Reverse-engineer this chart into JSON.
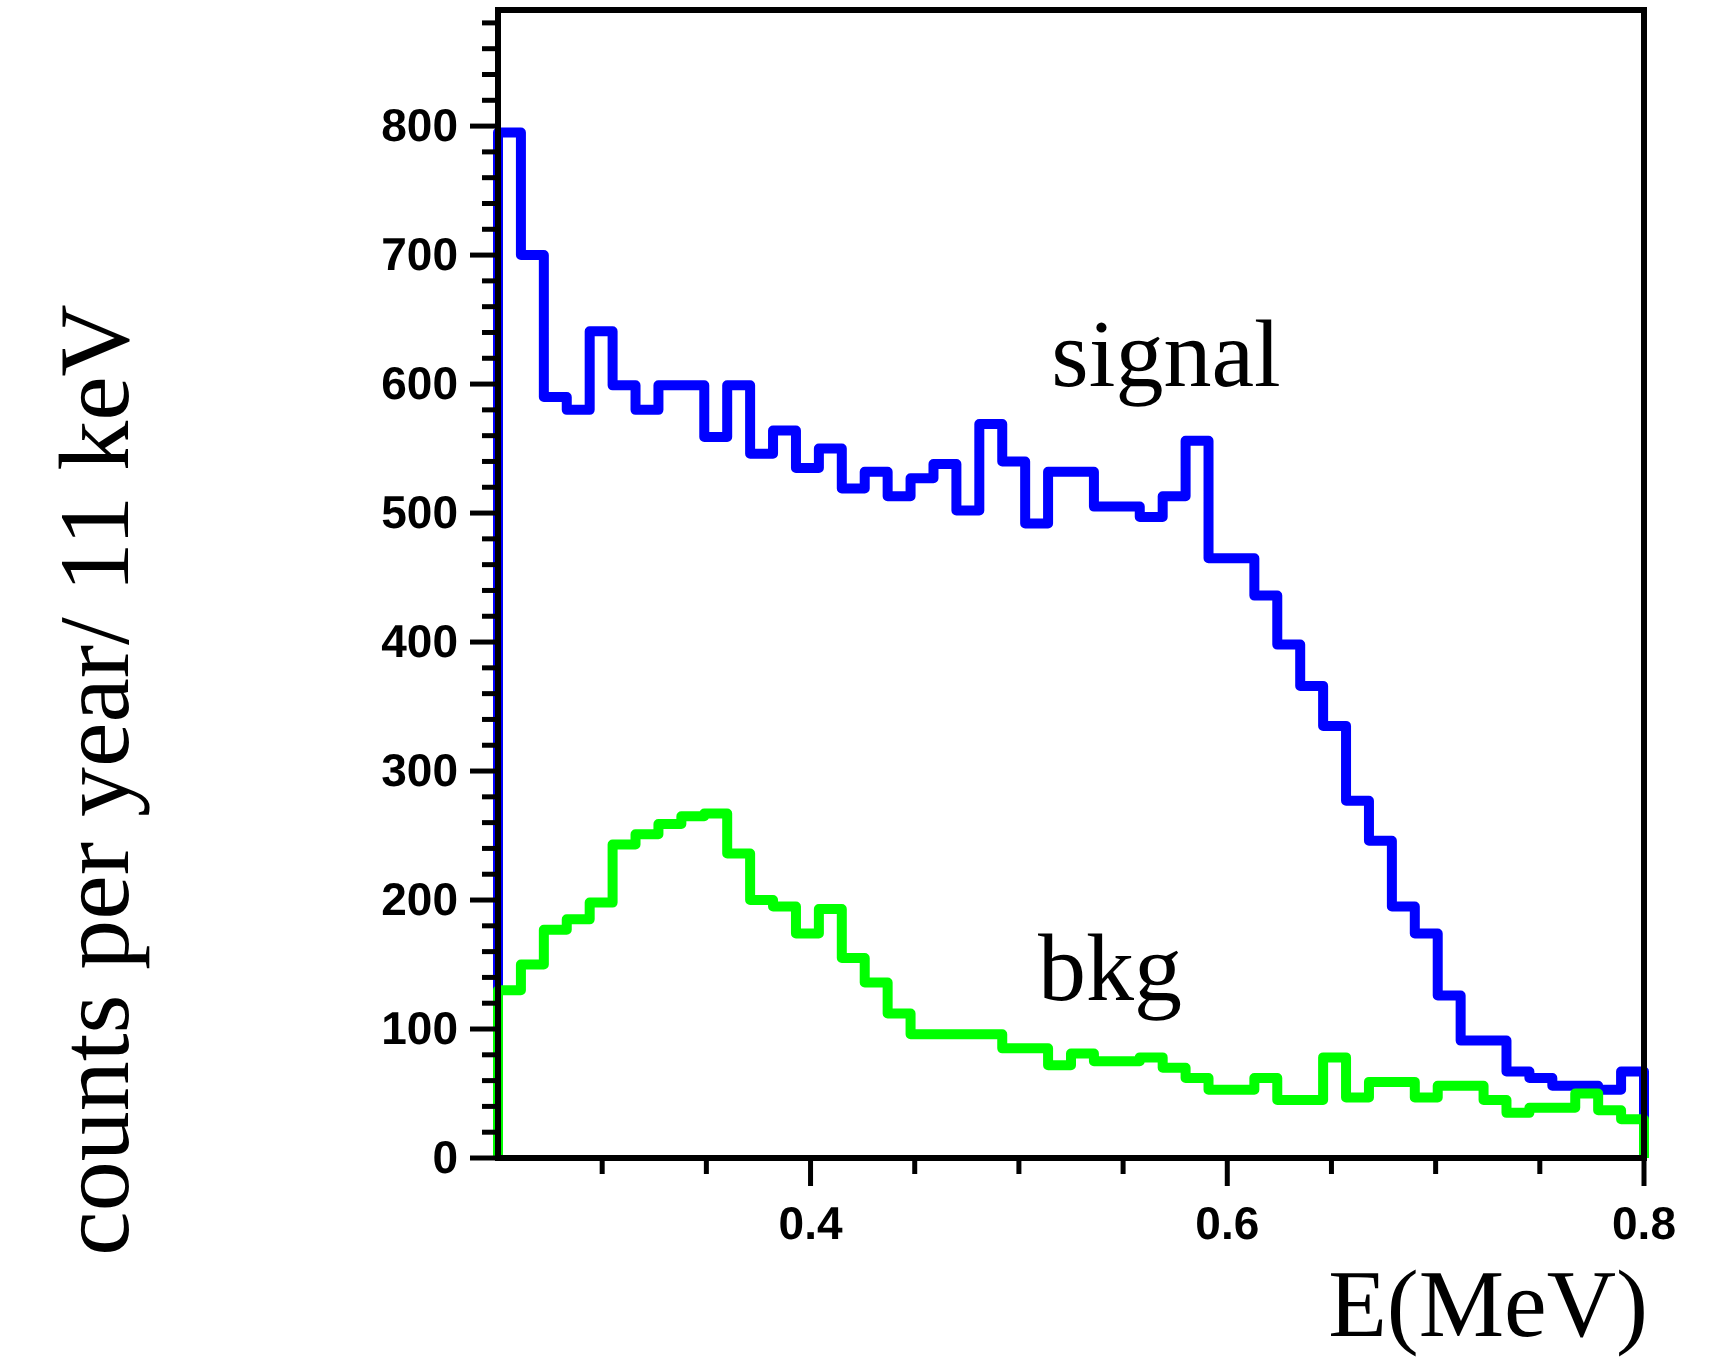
{
  "chart_data": {
    "type": "histogram",
    "xlabel": "E(MeV)",
    "ylabel": "counts per year/ 11 keV",
    "bins": [
      0.25,
      0.261,
      0.272,
      0.283,
      0.294,
      0.305,
      0.316,
      0.327,
      0.338,
      0.349,
      0.36,
      0.371,
      0.382,
      0.393,
      0.404,
      0.415,
      0.426,
      0.437,
      0.448,
      0.459,
      0.47,
      0.481,
      0.492,
      0.503,
      0.514,
      0.525,
      0.536,
      0.547,
      0.558,
      0.569,
      0.58,
      0.591,
      0.602,
      0.613,
      0.624,
      0.635,
      0.646,
      0.657,
      0.668,
      0.679,
      0.69,
      0.701,
      0.712,
      0.723,
      0.734,
      0.745,
      0.756,
      0.767,
      0.778,
      0.789,
      0.8
    ],
    "series": [
      {
        "name": "signal",
        "color": "#0000ff",
        "values": [
          795,
          700,
          590,
          580,
          641,
          599,
          580,
          599,
          599,
          559,
          599,
          546,
          564,
          535,
          550,
          519,
          532,
          513,
          527,
          538,
          502,
          569,
          540,
          492,
          532,
          532,
          505,
          505,
          497,
          513,
          556,
          465,
          465,
          436,
          398,
          366,
          335,
          277,
          246,
          195,
          174,
          126,
          91,
          91,
          67,
          62,
          56,
          56,
          53,
          67
        ]
      },
      {
        "name": "bkg",
        "color": "#00ff00",
        "values": [
          130,
          150,
          177,
          185,
          198,
          243,
          251,
          259,
          265,
          267,
          236,
          200,
          195,
          174,
          193,
          155,
          136,
          112,
          96,
          96,
          96,
          96,
          85,
          85,
          72,
          81,
          75,
          75,
          78,
          70,
          62,
          53,
          53,
          62,
          45,
          45,
          78,
          47,
          59,
          59,
          47,
          56,
          56,
          45,
          35,
          39,
          39,
          50,
          37,
          30
        ]
      }
    ],
    "xlim": [
      0.25,
      0.8
    ],
    "ylim": [
      0,
      890
    ],
    "xticks": [
      {
        "value": 0.3,
        "label": null
      },
      {
        "value": 0.35,
        "label": null
      },
      {
        "value": 0.4,
        "label": "0.4"
      },
      {
        "value": 0.45,
        "label": null
      },
      {
        "value": 0.5,
        "label": null
      },
      {
        "value": 0.55,
        "label": null
      },
      {
        "value": 0.6,
        "label": "0.6"
      },
      {
        "value": 0.65,
        "label": null
      },
      {
        "value": 0.7,
        "label": null
      },
      {
        "value": 0.75,
        "label": null
      },
      {
        "value": 0.8,
        "label": "0.8"
      }
    ],
    "yticks": [
      0,
      {
        "value": 20,
        "label": null
      },
      {
        "value": 40,
        "label": null
      },
      {
        "value": 60,
        "label": null
      },
      {
        "value": 80,
        "label": null
      },
      100,
      {
        "value": 120,
        "label": null
      },
      {
        "value": 140,
        "label": null
      },
      {
        "value": 160,
        "label": null
      },
      {
        "value": 180,
        "label": null
      },
      200,
      {
        "value": 220,
        "label": null
      },
      {
        "value": 240,
        "label": null
      },
      {
        "value": 260,
        "label": null
      },
      {
        "value": 280,
        "label": null
      },
      300,
      {
        "value": 320,
        "label": null
      },
      {
        "value": 340,
        "label": null
      },
      {
        "value": 360,
        "label": null
      },
      {
        "value": 380,
        "label": null
      },
      400,
      {
        "value": 420,
        "label": null
      },
      {
        "value": 440,
        "label": null
      },
      {
        "value": 460,
        "label": null
      },
      {
        "value": 480,
        "label": null
      },
      500,
      {
        "value": 520,
        "label": null
      },
      {
        "value": 540,
        "label": null
      },
      {
        "value": 560,
        "label": null
      },
      {
        "value": 580,
        "label": null
      },
      600,
      {
        "value": 620,
        "label": null
      },
      {
        "value": 640,
        "label": null
      },
      {
        "value": 660,
        "label": null
      },
      {
        "value": 680,
        "label": null
      },
      700,
      {
        "value": 720,
        "label": null
      },
      {
        "value": 740,
        "label": null
      },
      {
        "value": 760,
        "label": null
      },
      {
        "value": 780,
        "label": null
      },
      800,
      {
        "value": 820,
        "label": null
      },
      {
        "value": 840,
        "label": null
      },
      {
        "value": 860,
        "label": null
      },
      {
        "value": 880,
        "label": null
      }
    ],
    "grid": false
  }
}
